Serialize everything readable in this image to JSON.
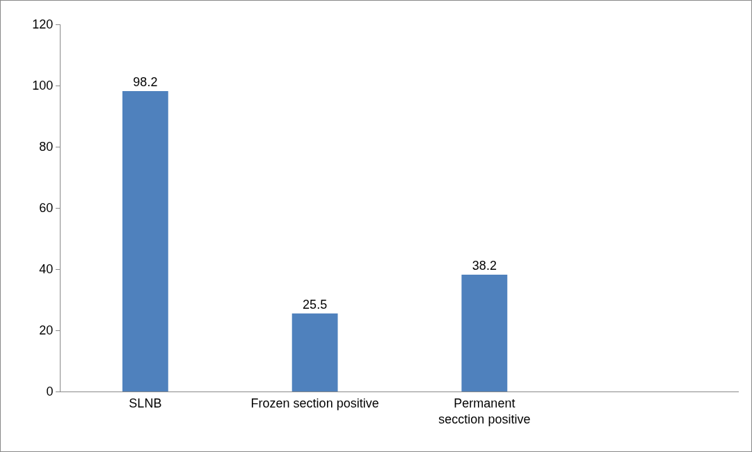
{
  "chart_data": {
    "type": "bar",
    "categories": [
      "SLNB",
      "Frozen section positive",
      "Permanent secction positive",
      null
    ],
    "values": [
      98.2,
      25.5,
      38.2,
      null
    ],
    "color": "#4f81bd",
    "data_labels": true,
    "ylim": [
      0,
      120
    ],
    "yticks": [
      0,
      20,
      40,
      60,
      80,
      100,
      120
    ],
    "grid": false,
    "legend": false
  }
}
